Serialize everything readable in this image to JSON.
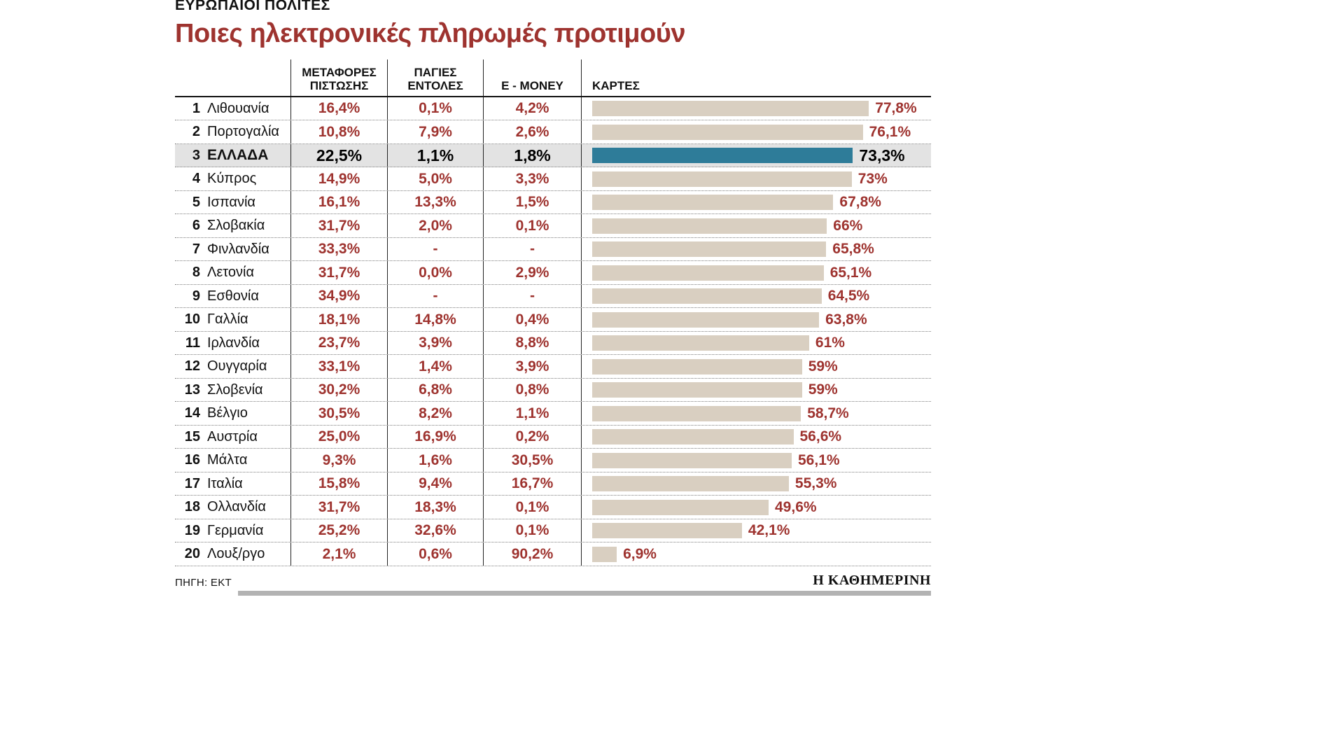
{
  "kicker": "ΕΥΡΩΠΑΙΟΙ ΠΟΛΙΤΕΣ",
  "title": "Ποιες ηλεκτρονικές πληρωμές προτιμούν",
  "source": "ΠΗΓΗ: ΕΚΤ",
  "brand": "Η ΚΑΘΗΜΕΡΙΝΗ",
  "colors": {
    "accent": "#9e332f",
    "bar_fill": "#d9cfc1",
    "highlight_bar": "#2e7c99",
    "highlight_row_bg": "#e3e3e3",
    "rule_gray": "#b3b3b3"
  },
  "chart_data": {
    "type": "bar",
    "title": "Ποιες ηλεκτρονικές πληρωμές προτιμούν",
    "xlabel": "",
    "ylabel": "ΚΑΡΤΕΣ %",
    "xlim": [
      0,
      78
    ],
    "legend_position": "none",
    "grid": false,
    "columns": [
      "ΜΕΤΑΦΟΡΕΣ ΠΙΣΤΩΣΗΣ",
      "ΠΑΓΙΕΣ ΕΝΤΟΛΕΣ",
      "E - MONEY",
      "ΚΑΡΤΕΣ"
    ],
    "rows": [
      {
        "rank": "1",
        "country": "Λιθουανία",
        "credit_transfers": "16,4%",
        "standing_orders": "0,1%",
        "e_money": "4,2%",
        "cards_label": "77,8%",
        "cards_value": 77.8,
        "highlight": false
      },
      {
        "rank": "2",
        "country": "Πορτογαλία",
        "credit_transfers": "10,8%",
        "standing_orders": "7,9%",
        "e_money": "2,6%",
        "cards_label": "76,1%",
        "cards_value": 76.1,
        "highlight": false
      },
      {
        "rank": "3",
        "country": "ΕΛΛΑΔΑ",
        "credit_transfers": "22,5%",
        "standing_orders": "1,1%",
        "e_money": "1,8%",
        "cards_label": "73,3%",
        "cards_value": 73.3,
        "highlight": true
      },
      {
        "rank": "4",
        "country": "Κύπρος",
        "credit_transfers": "14,9%",
        "standing_orders": "5,0%",
        "e_money": "3,3%",
        "cards_label": "73%",
        "cards_value": 73.0,
        "highlight": false
      },
      {
        "rank": "5",
        "country": "Ισπανία",
        "credit_transfers": "16,1%",
        "standing_orders": "13,3%",
        "e_money": "1,5%",
        "cards_label": "67,8%",
        "cards_value": 67.8,
        "highlight": false
      },
      {
        "rank": "6",
        "country": "Σλοβακία",
        "credit_transfers": "31,7%",
        "standing_orders": "2,0%",
        "e_money": "0,1%",
        "cards_label": "66%",
        "cards_value": 66.0,
        "highlight": false
      },
      {
        "rank": "7",
        "country": "Φινλανδία",
        "credit_transfers": "33,3%",
        "standing_orders": "-",
        "e_money": "-",
        "cards_label": "65,8%",
        "cards_value": 65.8,
        "highlight": false
      },
      {
        "rank": "8",
        "country": "Λετονία",
        "credit_transfers": "31,7%",
        "standing_orders": "0,0%",
        "e_money": "2,9%",
        "cards_label": "65,1%",
        "cards_value": 65.1,
        "highlight": false
      },
      {
        "rank": "9",
        "country": "Εσθονία",
        "credit_transfers": "34,9%",
        "standing_orders": "-",
        "e_money": "-",
        "cards_label": "64,5%",
        "cards_value": 64.5,
        "highlight": false
      },
      {
        "rank": "10",
        "country": "Γαλλία",
        "credit_transfers": "18,1%",
        "standing_orders": "14,8%",
        "e_money": "0,4%",
        "cards_label": "63,8%",
        "cards_value": 63.8,
        "highlight": false
      },
      {
        "rank": "11",
        "country": "Ιρλανδία",
        "credit_transfers": "23,7%",
        "standing_orders": "3,9%",
        "e_money": "8,8%",
        "cards_label": "61%",
        "cards_value": 61.0,
        "highlight": false
      },
      {
        "rank": "12",
        "country": "Ουγγαρία",
        "credit_transfers": "33,1%",
        "standing_orders": "1,4%",
        "e_money": "3,9%",
        "cards_label": "59%",
        "cards_value": 59.0,
        "highlight": false
      },
      {
        "rank": "13",
        "country": "Σλοβενία",
        "credit_transfers": "30,2%",
        "standing_orders": "6,8%",
        "e_money": "0,8%",
        "cards_label": "59%",
        "cards_value": 59.0,
        "highlight": false
      },
      {
        "rank": "14",
        "country": "Βέλγιο",
        "credit_transfers": "30,5%",
        "standing_orders": "8,2%",
        "e_money": "1,1%",
        "cards_label": "58,7%",
        "cards_value": 58.7,
        "highlight": false
      },
      {
        "rank": "15",
        "country": "Αυστρία",
        "credit_transfers": "25,0%",
        "standing_orders": "16,9%",
        "e_money": "0,2%",
        "cards_label": "56,6%",
        "cards_value": 56.6,
        "highlight": false
      },
      {
        "rank": "16",
        "country": "Μάλτα",
        "credit_transfers": "9,3%",
        "standing_orders": "1,6%",
        "e_money": "30,5%",
        "cards_label": "56,1%",
        "cards_value": 56.1,
        "highlight": false
      },
      {
        "rank": "17",
        "country": "Ιταλία",
        "credit_transfers": "15,8%",
        "standing_orders": "9,4%",
        "e_money": "16,7%",
        "cards_label": "55,3%",
        "cards_value": 55.3,
        "highlight": false
      },
      {
        "rank": "18",
        "country": "Ολλανδία",
        "credit_transfers": "31,7%",
        "standing_orders": "18,3%",
        "e_money": "0,1%",
        "cards_label": "49,6%",
        "cards_value": 49.6,
        "highlight": false
      },
      {
        "rank": "19",
        "country": "Γερμανία",
        "credit_transfers": "25,2%",
        "standing_orders": "32,6%",
        "e_money": "0,1%",
        "cards_label": "42,1%",
        "cards_value": 42.1,
        "highlight": false
      },
      {
        "rank": "20",
        "country": "Λουξ/ργο",
        "credit_transfers": "2,1%",
        "standing_orders": "0,6%",
        "e_money": "90,2%",
        "cards_label": "6,9%",
        "cards_value": 6.9,
        "highlight": false
      }
    ]
  }
}
